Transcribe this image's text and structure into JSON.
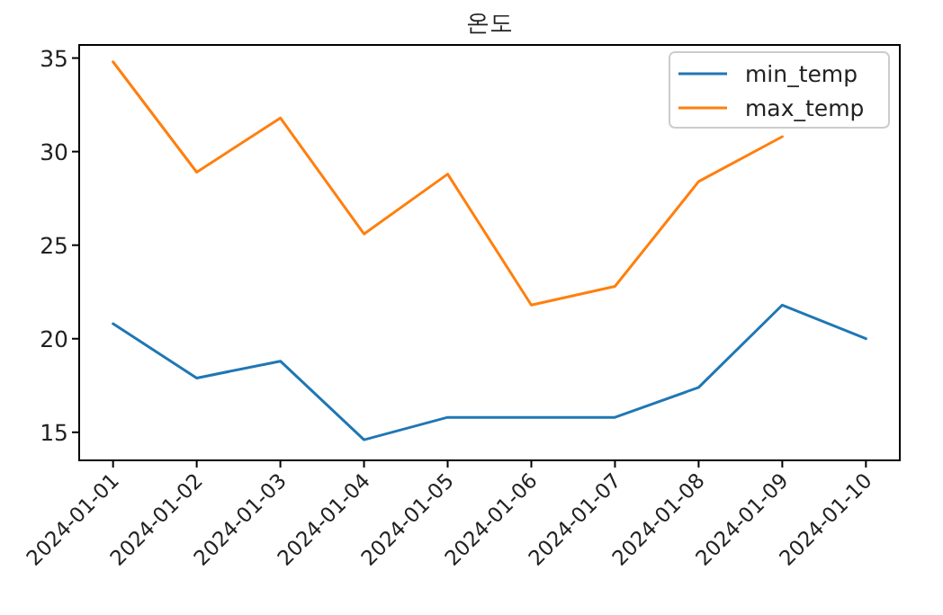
{
  "chart_data": {
    "type": "line",
    "title": "온도",
    "categories": [
      "2024-01-01",
      "2024-01-02",
      "2024-01-03",
      "2024-01-04",
      "2024-01-05",
      "2024-01-06",
      "2024-01-07",
      "2024-01-08",
      "2024-01-09",
      "2024-01-10"
    ],
    "series": [
      {
        "name": "min_temp",
        "color": "#1f77b4",
        "values": [
          20.8,
          17.9,
          18.8,
          14.6,
          15.8,
          15.8,
          15.8,
          17.4,
          21.8,
          20.0
        ]
      },
      {
        "name": "max_temp",
        "color": "#ff7f0e",
        "values": [
          34.8,
          28.9,
          31.8,
          25.6,
          28.8,
          21.8,
          22.8,
          28.4,
          30.8,
          null
        ]
      }
    ],
    "ylim": [
      13.5,
      35.7
    ],
    "yticks": [
      15,
      20,
      25,
      30,
      35
    ],
    "grid": false,
    "legend": "top right",
    "marker": "none",
    "line_style": "solid"
  }
}
